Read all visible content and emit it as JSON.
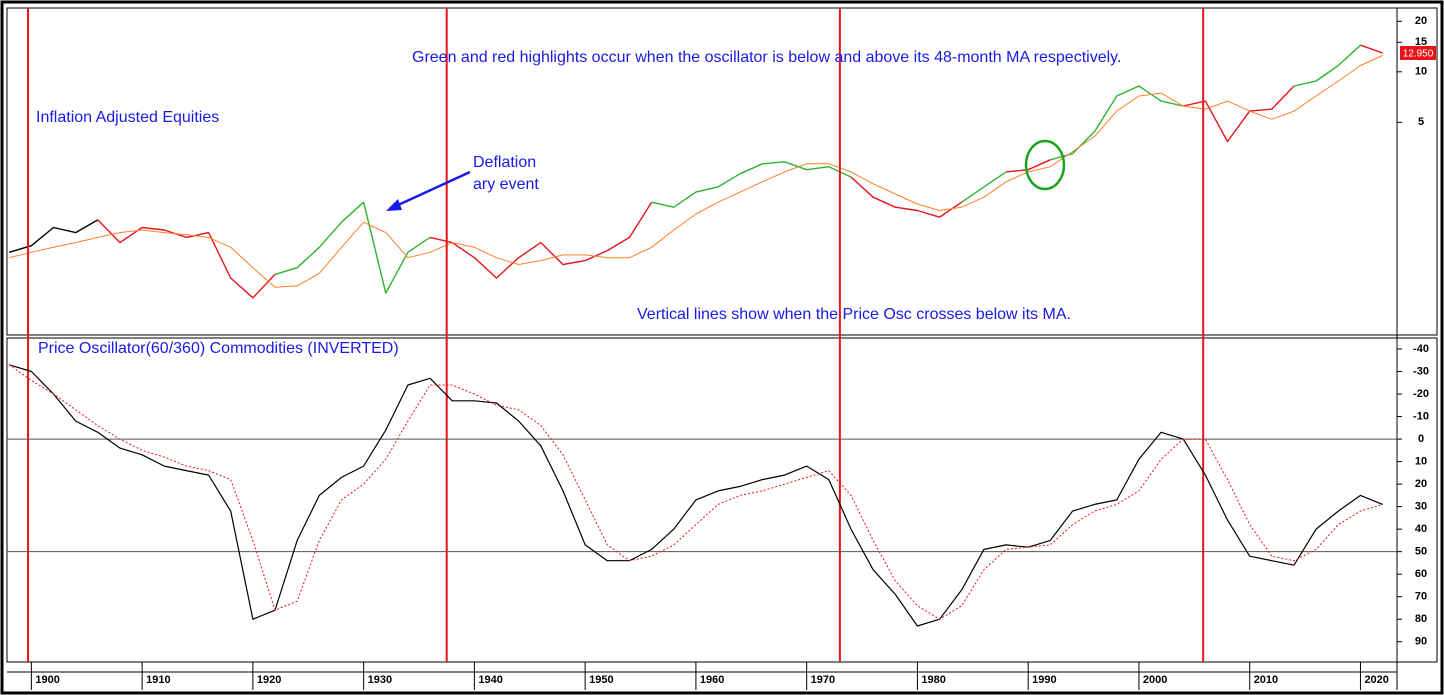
{
  "chart_data": [
    {
      "type": "line",
      "title": "Inflation Adjusted Equities",
      "annotations": [
        "Green and red highlights occur when the oscillator is below and above its 48-month MA respectively.",
        "Deflation",
        "ary event",
        "Vertical lines show when the Price Osc crosses below its MA."
      ],
      "log": true,
      "xlim": [
        1897.8,
        2023.3
      ],
      "ylim": [
        0.27,
        24
      ],
      "yticks": [
        5,
        10,
        15,
        20
      ],
      "vlines": [
        1899.7,
        1937.5,
        1973,
        2005.8
      ],
      "vline_color": "#e8141a",
      "x": [
        1898,
        1900,
        1902,
        1904,
        1906,
        1908,
        1910,
        1912,
        1914,
        1916,
        1918,
        1920,
        1922,
        1924,
        1926,
        1928,
        1930,
        1932,
        1934,
        1936,
        1938,
        1940,
        1942,
        1944,
        1946,
        1948,
        1950,
        1952,
        1954,
        1956,
        1958,
        1960,
        1962,
        1964,
        1966,
        1968,
        1970,
        1972,
        1974,
        1976,
        1978,
        1980,
        1982,
        1984,
        1986,
        1988,
        1990,
        1992,
        1994,
        1996,
        1998,
        2000,
        2002,
        2004,
        2006,
        2008,
        2010,
        2012,
        2014,
        2016,
        2018,
        2020,
        2022
      ],
      "series": [
        {
          "color": "#000000",
          "width": 1.4,
          "values": [
            0.84,
            0.92,
            1.18,
            1.1,
            1.31,
            null,
            null,
            null,
            null,
            null,
            null,
            null,
            null,
            null,
            null,
            null,
            null,
            null,
            null,
            null,
            null,
            null,
            null,
            null,
            null,
            null,
            null,
            null,
            null,
            null,
            null,
            null,
            null,
            null,
            null,
            null,
            null,
            null,
            null,
            null,
            null,
            null,
            null,
            null,
            null,
            null,
            null,
            null,
            null,
            null,
            null,
            null,
            null,
            null,
            null,
            null,
            null,
            null,
            null,
            null,
            null,
            null,
            null
          ]
        },
        {
          "color": "#e8141a",
          "width": 1.4,
          "values": [
            null,
            null,
            null,
            null,
            1.31,
            0.96,
            1.18,
            1.14,
            1.03,
            1.1,
            0.59,
            0.45,
            0.62,
            null,
            null,
            null,
            null,
            null,
            null,
            1.03,
            0.96,
            0.78,
            0.59,
            0.78,
            0.96,
            0.71,
            0.75,
            0.86,
            1.03,
            1.67,
            null,
            null,
            null,
            null,
            null,
            null,
            null,
            null,
            2.36,
            1.79,
            1.56,
            1.49,
            1.36,
            1.67,
            null,
            2.53,
            2.61,
            2.99,
            null,
            null,
            null,
            null,
            null,
            6.25,
            6.69,
            3.84,
            5.83,
            5.99,
            8.23,
            null,
            null,
            14.4,
            12.95
          ],
          "value_labels": [
            null,
            null,
            null,
            null,
            null,
            null,
            null,
            null,
            null,
            null,
            null,
            null,
            null,
            null,
            null,
            null,
            null,
            null,
            null,
            null,
            null,
            null,
            null,
            null,
            null,
            null,
            null,
            null,
            null,
            null,
            null,
            null,
            null,
            null,
            null,
            null,
            null,
            null,
            null,
            null,
            null,
            null,
            null,
            null,
            null,
            null,
            null,
            null,
            null,
            null,
            null,
            null,
            null,
            null,
            null,
            null,
            null,
            null,
            null,
            null,
            null,
            null,
            "12.950"
          ]
        },
        {
          "color": "#2db52d",
          "width": 1.4,
          "values": [
            null,
            null,
            null,
            null,
            null,
            null,
            null,
            null,
            null,
            null,
            null,
            null,
            0.62,
            0.68,
            0.9,
            1.27,
            1.67,
            0.48,
            0.84,
            1.03,
            null,
            null,
            null,
            null,
            null,
            null,
            null,
            null,
            null,
            1.67,
            1.56,
            1.92,
            2.06,
            2.47,
            2.83,
            2.91,
            2.61,
            2.72,
            2.36,
            null,
            null,
            null,
            null,
            1.67,
            2.06,
            2.53,
            null,
            2.99,
            3.25,
            4.41,
            7.17,
            8.23,
            6.69,
            6.25,
            null,
            null,
            null,
            null,
            8.23,
            8.81,
            10.9,
            14.4,
            null
          ]
        },
        {
          "color": "#ff7f27",
          "width": 1,
          "values": [
            0.78,
            0.84,
            0.9,
            0.96,
            1.03,
            1.1,
            1.14,
            1.1,
            1.07,
            1.03,
            0.9,
            0.68,
            0.52,
            0.53,
            0.63,
            0.9,
            1.27,
            1.1,
            0.78,
            0.84,
            0.96,
            0.9,
            0.78,
            0.71,
            0.75,
            0.81,
            0.81,
            0.78,
            0.78,
            0.9,
            1.14,
            1.42,
            1.67,
            1.92,
            2.21,
            2.53,
            2.83,
            2.83,
            2.53,
            2.15,
            1.87,
            1.63,
            1.49,
            1.56,
            1.79,
            2.21,
            2.53,
            2.72,
            3.34,
            4.12,
            5.83,
            7.17,
            7.47,
            6.25,
            5.99,
            6.69,
            5.83,
            5.21,
            5.83,
            7.17,
            8.81,
            10.9,
            12.5
          ]
        }
      ]
    },
    {
      "type": "line",
      "title": "Price Oscillator(60/360) Commodities (INVERTED)",
      "inverted": true,
      "xlim": [
        1897.8,
        2023.3
      ],
      "ylim": [
        -44,
        99
      ],
      "yticks": [
        -40,
        -30,
        -20,
        -10,
        0,
        10,
        20,
        30,
        40,
        50,
        60,
        70,
        80,
        90
      ],
      "hlines": [
        0,
        50
      ],
      "xticks": [
        1900,
        1910,
        1920,
        1930,
        1940,
        1950,
        1960,
        1970,
        1980,
        1990,
        2000,
        2010,
        2020
      ],
      "x": [
        1898,
        1900,
        1902,
        1904,
        1906,
        1908,
        1910,
        1912,
        1914,
        1916,
        1918,
        1920,
        1922,
        1924,
        1926,
        1928,
        1930,
        1932,
        1934,
        1936,
        1938,
        1940,
        1942,
        1944,
        1946,
        1948,
        1950,
        1952,
        1954,
        1956,
        1958,
        1960,
        1962,
        1964,
        1966,
        1968,
        1970,
        1972,
        1974,
        1976,
        1978,
        1980,
        1982,
        1984,
        1986,
        1988,
        1990,
        1992,
        1994,
        1996,
        1998,
        2000,
        2002,
        2004,
        2006,
        2008,
        2010,
        2012,
        2014,
        2016,
        2018,
        2020,
        2022
      ],
      "series": [
        {
          "color": "#000000",
          "width": 1.2,
          "values": [
            -33,
            -30,
            -20,
            -8,
            -3,
            4,
            7,
            12,
            14,
            16,
            32,
            80,
            76,
            45,
            25,
            17,
            12,
            -4,
            -24,
            -27,
            -17,
            -17,
            -16,
            -8,
            3,
            23,
            47,
            54,
            54,
            49,
            40,
            27,
            23,
            21,
            18,
            16,
            12,
            18,
            40,
            58,
            69,
            83,
            80,
            67,
            49,
            47,
            48,
            45,
            32,
            29,
            27,
            9,
            -3,
            0,
            16,
            36,
            52,
            54,
            56,
            40,
            32,
            25,
            29
          ]
        },
        {
          "color": "#e8141a",
          "width": 1,
          "dotted": true,
          "values": [
            -33,
            -26,
            -20,
            -13,
            -6,
            0,
            5,
            8,
            12,
            14,
            18,
            45,
            76,
            72,
            45,
            27,
            20,
            9,
            -8,
            -24,
            -24,
            -20,
            -15,
            -13,
            -6,
            7,
            27,
            47,
            54,
            52,
            47,
            38,
            29,
            25,
            23,
            20,
            17,
            14,
            25,
            45,
            63,
            74,
            80,
            74,
            58,
            49,
            48,
            47,
            38,
            32,
            29,
            23,
            9,
            0,
            0,
            18,
            38,
            52,
            54,
            49,
            38,
            32,
            29
          ]
        }
      ]
    }
  ]
}
